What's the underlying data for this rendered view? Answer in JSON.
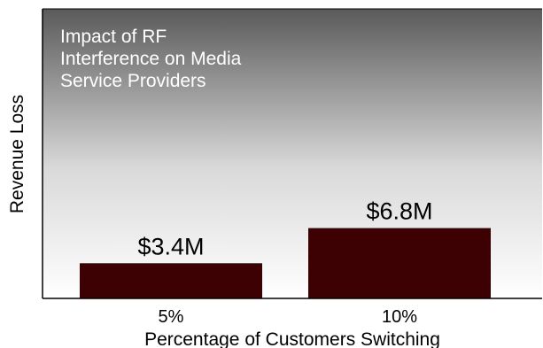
{
  "chart_data": {
    "type": "bar",
    "title": [
      "Impact of RF",
      "Interference on Media",
      "Service Providers"
    ],
    "xlabel": "Percentage of Customers Switching",
    "ylabel": "Revenue Loss",
    "categories": [
      "5%",
      "10%"
    ],
    "values": [
      3.4,
      6.8
    ],
    "data_labels": [
      "$3.4M",
      "$6.8M"
    ],
    "ylim": [
      0,
      28
    ],
    "grid": false,
    "legend": "none",
    "colors": {
      "bar": "#3d0003",
      "plot_top": "#5a5a5a",
      "plot_bottom": "#ffffff",
      "axis": "#000000"
    }
  }
}
